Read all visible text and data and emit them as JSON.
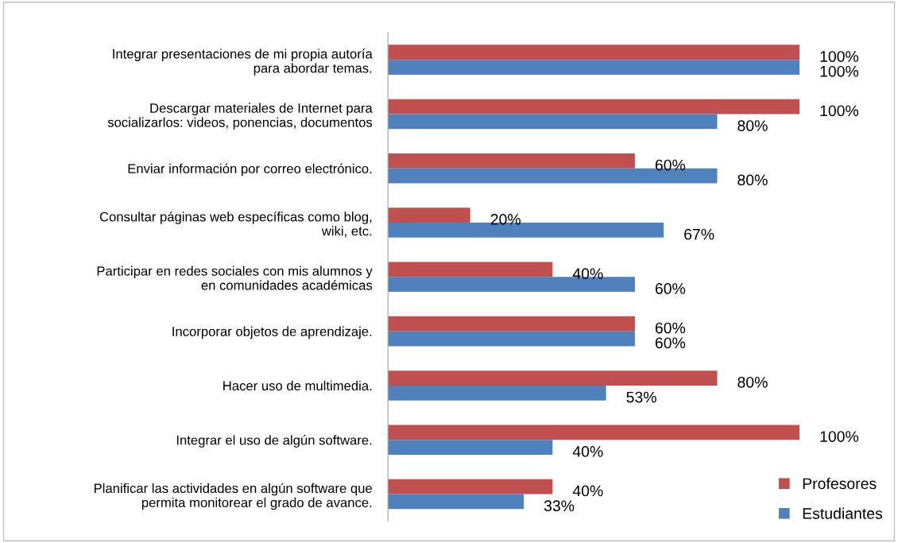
{
  "chart_data": {
    "type": "bar",
    "orientation": "horizontal",
    "categories": [
      "Integrar presentaciones de mi propia autoría\npara abordar temas.",
      "Descargar materiales de Internet para\nsocializarlos: videos, ponencias, documentos",
      "Enviar información por correo electrónico.",
      "Consultar páginas web específicas como blog,\nwiki, etc.",
      "Participar en redes sociales con mis alumnos y\nen comunidades académicas",
      "Incorporar objetos de aprendizaje.",
      "Hacer uso de multimedia.",
      "Integrar el uso de algún software.",
      "Planificar las actividades en algún software que\npermita monitorear el grado de avance."
    ],
    "series": [
      {
        "name": "Profesores",
        "color": "#c0504d",
        "values": [
          100,
          100,
          60,
          20,
          40,
          60,
          80,
          100,
          40
        ],
        "value_labels": [
          "100%",
          "100%",
          "60%",
          "20%",
          "40%",
          "60%",
          "80%",
          "100%",
          "40%"
        ]
      },
      {
        "name": "Estudiantes",
        "color": "#4f81bd",
        "values": [
          100,
          80,
          80,
          67,
          60,
          60,
          53,
          40,
          33
        ],
        "value_labels": [
          "100%",
          "80%",
          "80%",
          "67%",
          "60%",
          "60%",
          "53%",
          "40%",
          "33%"
        ]
      }
    ],
    "legend": "bottom right",
    "tick_labels": "y"
  }
}
